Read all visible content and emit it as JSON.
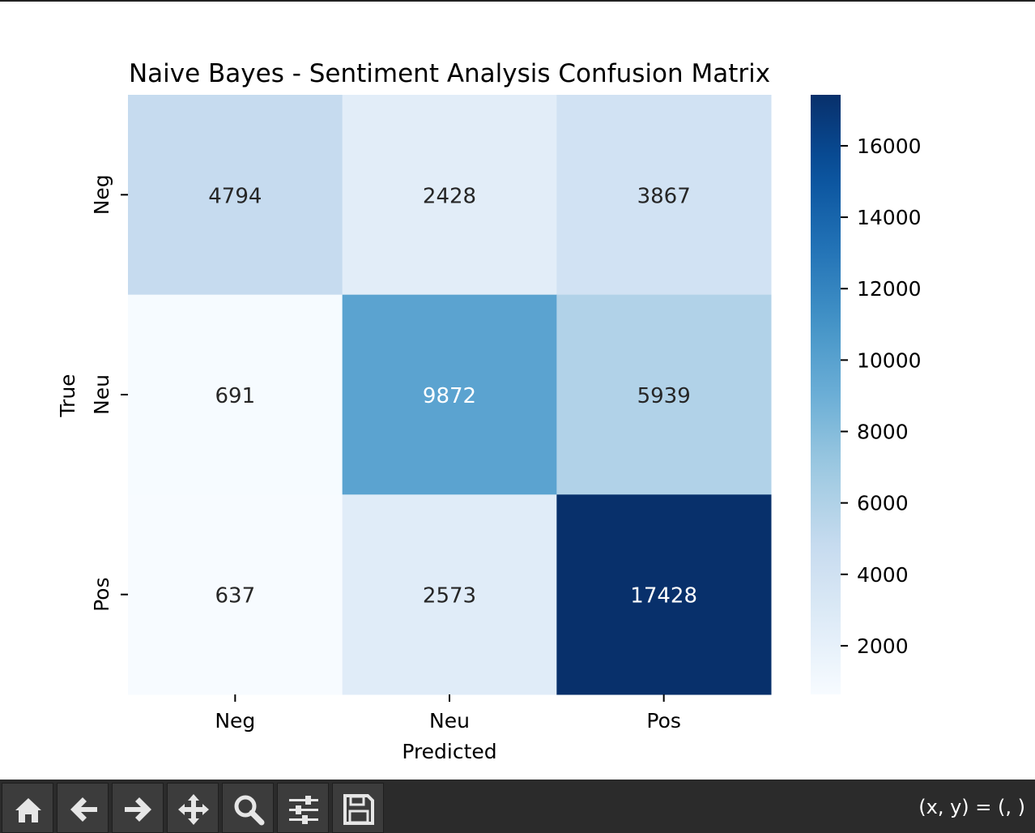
{
  "chart_data": {
    "type": "heatmap",
    "title": "Naive Bayes - Sentiment Analysis Confusion Matrix",
    "xlabel": "Predicted",
    "ylabel": "True",
    "x_categories": [
      "Neg",
      "Neu",
      "Pos"
    ],
    "y_categories": [
      "Neg",
      "Neu",
      "Pos"
    ],
    "values": [
      [
        4794,
        2428,
        3867
      ],
      [
        691,
        9872,
        5939
      ],
      [
        637,
        2573,
        17428
      ]
    ],
    "colormap": "Blues",
    "colorbar": {
      "min": 637,
      "max": 17428,
      "ticks": [
        2000,
        4000,
        6000,
        8000,
        10000,
        12000,
        14000,
        16000
      ]
    },
    "colors": {
      "low": "#f7fbff",
      "high": "#08306b"
    }
  },
  "toolbar": {
    "buttons": [
      {
        "name": "home-button",
        "icon": "home-icon"
      },
      {
        "name": "back-button",
        "icon": "arrow-left-icon"
      },
      {
        "name": "forward-button",
        "icon": "arrow-right-icon"
      },
      {
        "name": "pan-button",
        "icon": "move-icon"
      },
      {
        "name": "zoom-button",
        "icon": "magnifier-icon"
      },
      {
        "name": "configure-subplots-button",
        "icon": "sliders-icon"
      },
      {
        "name": "save-button",
        "icon": "floppy-disk-icon"
      }
    ],
    "coords_label": "(x, y) = (, )"
  }
}
